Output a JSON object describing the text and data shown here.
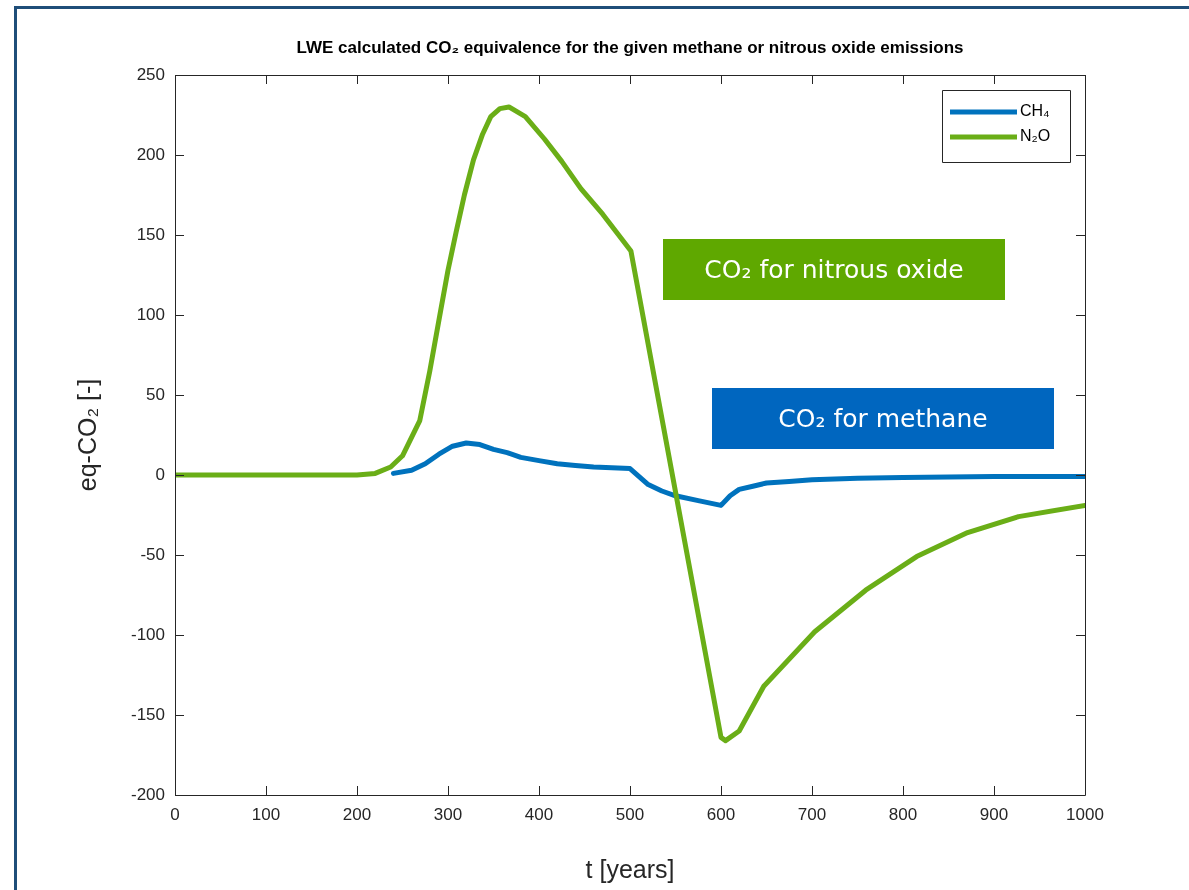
{
  "chart_data": {
    "type": "line",
    "title": "LWE calculated CO₂ equivalence for the given methane or nitrous oxide emissions",
    "xlabel": "t [years]",
    "ylabel": "eq-CO₂ [-]",
    "xlim": [
      0,
      1000
    ],
    "xticks": [
      0,
      100,
      200,
      300,
      400,
      500,
      600,
      700,
      800,
      900,
      1000
    ],
    "ylim": [
      -200,
      250
    ],
    "yticks": [
      -200,
      -150,
      -100,
      -50,
      0,
      50,
      100,
      150,
      200,
      250
    ],
    "grid": false,
    "legend": "top right",
    "marker": "none",
    "line_style": "solid",
    "annotations": [
      "CO₂ for nitrous oxide",
      "CO₂ for methane"
    ],
    "series": [
      {
        "name": "CH₄",
        "color": "#0072bd",
        "x": [
          240,
          260,
          275,
          290,
          305,
          320,
          335,
          350,
          365,
          380,
          400,
          420,
          440,
          460,
          480,
          500,
          510,
          520,
          535,
          550,
          575,
          600,
          610,
          620,
          635,
          650,
          675,
          700,
          750,
          800,
          900,
          1000
        ],
        "values": [
          1,
          3,
          7,
          13,
          18,
          20,
          19,
          16,
          14,
          11,
          9,
          7,
          6,
          5,
          4.5,
          4,
          -1,
          -6,
          -10,
          -13,
          -16,
          -19,
          -13,
          -9,
          -7,
          -5,
          -4,
          -3,
          -2,
          -1.5,
          -1,
          -1
        ]
      },
      {
        "name": "N₂O",
        "color": "#6aae17",
        "x": [
          0,
          100,
          200,
          220,
          237,
          250,
          269,
          280,
          292,
          300,
          309,
          318,
          328,
          338,
          347,
          357,
          367,
          385,
          406,
          425,
          446,
          470,
          501,
          600,
          605,
          620,
          647,
          675,
          703,
          759,
          815,
          871,
          927,
          1000
        ],
        "values": [
          0,
          0,
          0,
          1,
          5,
          12,
          34,
          65,
          103,
          128,
          152,
          175,
          197,
          213,
          224,
          229,
          230,
          224,
          210,
          196,
          179,
          163,
          140,
          -164,
          -166,
          -160,
          -132,
          -115,
          -98,
          -72,
          -51,
          -36,
          -26,
          -19
        ]
      }
    ]
  }
}
